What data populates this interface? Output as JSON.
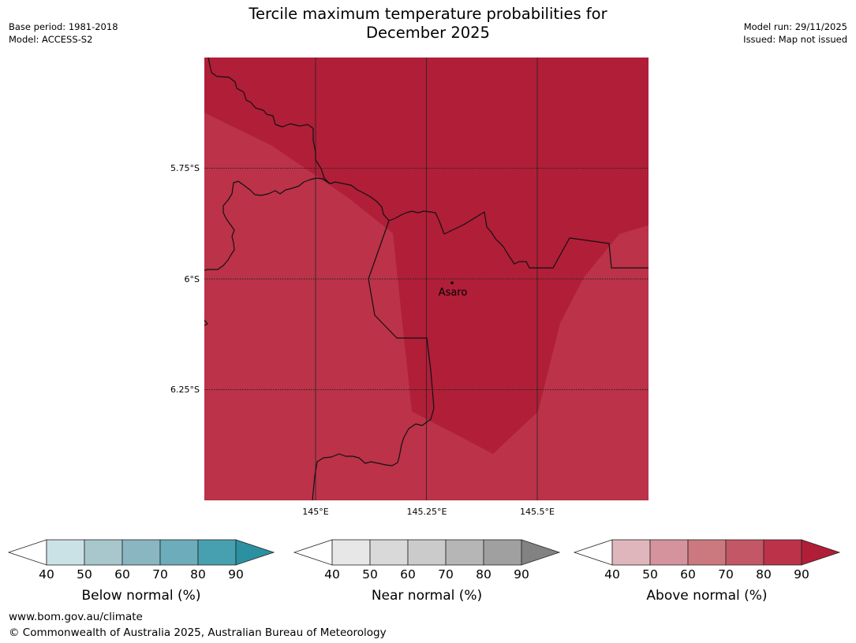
{
  "header": {
    "title_line1": "Tercile maximum temperature probabilities for",
    "title_line2": "December 2025",
    "base_period": "Base period: 1981-2018",
    "model": "Model: ACCESS-S2",
    "model_run": "Model run: 29/11/2025",
    "issued": "Issued: Map not issued"
  },
  "map": {
    "lat_labels": [
      "5.75°S",
      "6°S",
      "6.25°S"
    ],
    "lon_labels": [
      "145°E",
      "145.25°E",
      "145.5°E"
    ],
    "place": {
      "name": "Asaro"
    },
    "colors": {
      "above_70_80": "#bb3249",
      "above_80_90": "#b01e38"
    }
  },
  "legends": [
    {
      "title": "Below normal (%)",
      "ticks": [
        "40",
        "50",
        "60",
        "70",
        "80",
        "90"
      ],
      "colors": [
        "#cae2e6",
        "#a7c7cc",
        "#89b6c1",
        "#6cacbb",
        "#47a0b0",
        "#2b90a0"
      ]
    },
    {
      "title": "Near normal (%)",
      "ticks": [
        "40",
        "50",
        "60",
        "70",
        "80",
        "90"
      ],
      "colors": [
        "#e7e7e7",
        "#d9d9d9",
        "#cbcbcb",
        "#b6b6b6",
        "#a0a0a0",
        "#828282"
      ]
    },
    {
      "title": "Above normal (%)",
      "ticks": [
        "40",
        "50",
        "60",
        "70",
        "80",
        "90"
      ],
      "colors": [
        "#e0b6bd",
        "#d5939d",
        "#cc787f",
        "#c45765",
        "#bb3249",
        "#b01e38"
      ]
    }
  ],
  "footer": {
    "url": "www.bom.gov.au/climate",
    "copyright": "© Commonwealth of Australia 2025, Australian Bureau of Meteorology"
  }
}
